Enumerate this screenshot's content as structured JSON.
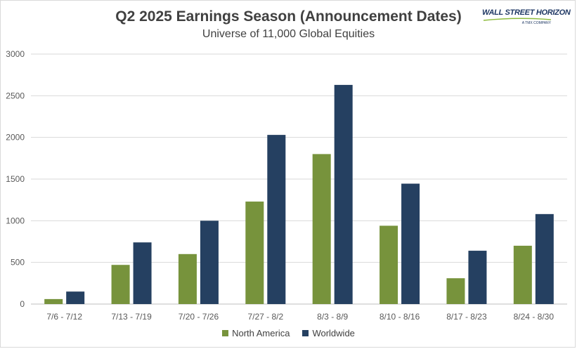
{
  "chart_data": {
    "type": "bar",
    "title": "Q2 2025 Earnings Season (Announcement Dates)",
    "subtitle": "Universe of 11,000 Global Equities",
    "categories": [
      "7/6 - 7/12",
      "7/13 - 7/19",
      "7/20 - 7/26",
      "7/27 - 8/2",
      "8/3 - 8/9",
      "8/10 - 8/16",
      "8/17 - 8/23",
      "8/24 - 8/30"
    ],
    "series": [
      {
        "name": "North America",
        "color": "#77933c",
        "values": [
          60,
          470,
          600,
          1230,
          1800,
          940,
          310,
          700
        ]
      },
      {
        "name": "Worldwide",
        "color": "#254061",
        "values": [
          150,
          740,
          1000,
          2030,
          2630,
          1445,
          640,
          1080
        ]
      }
    ],
    "ylim": [
      0,
      3000
    ],
    "yticks": [
      "0",
      "500",
      "1000",
      "1500",
      "2000",
      "2500",
      "3000"
    ],
    "ytick_values": [
      0,
      500,
      1000,
      1500,
      2000,
      2500,
      3000
    ],
    "grid": true,
    "legend_position": "bottom"
  },
  "logo": {
    "text": "WALL STREET HORIZON",
    "subtext": "A TMX COMPANY",
    "icon": "wall-street-horizon-logo"
  }
}
